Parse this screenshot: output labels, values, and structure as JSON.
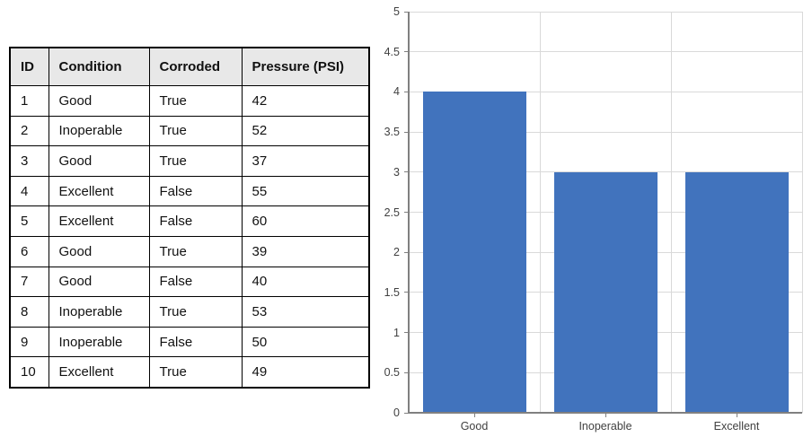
{
  "table": {
    "headers": [
      "ID",
      "Condition",
      "Corroded",
      "Pressure (PSI)"
    ],
    "rows": [
      [
        "1",
        "Good",
        "True",
        "42"
      ],
      [
        "2",
        "Inoperable",
        "True",
        "52"
      ],
      [
        "3",
        "Good",
        "True",
        "37"
      ],
      [
        "4",
        "Excellent",
        "False",
        "55"
      ],
      [
        "5",
        "Excellent",
        "False",
        "60"
      ],
      [
        "6",
        "Good",
        "True",
        "39"
      ],
      [
        "7",
        "Good",
        "False",
        "40"
      ],
      [
        "8",
        "Inoperable",
        "True",
        "53"
      ],
      [
        "9",
        "Inoperable",
        "False",
        "50"
      ],
      [
        "10",
        "Excellent",
        "True",
        "49"
      ]
    ],
    "header_bg": "#E8E8E8",
    "border_color": "#000000"
  },
  "chart_data": {
    "type": "bar",
    "categories": [
      "Good",
      "Inoperable",
      "Excellent"
    ],
    "values": [
      4,
      3,
      3
    ],
    "title": "",
    "xlabel": "",
    "ylabel": "",
    "ylim": [
      0,
      5
    ],
    "ytick_step": 0.5,
    "ytick_labels": [
      "0",
      "0.5",
      "1",
      "1.5",
      "2",
      "2.5",
      "3",
      "3.5",
      "4",
      "4.5",
      "5"
    ],
    "grid": true,
    "legend": false,
    "bar_color": "#4173BD",
    "gridline_color": "#D9D9D9",
    "axis_color": "#808080",
    "tick_label_color": "#404040"
  }
}
